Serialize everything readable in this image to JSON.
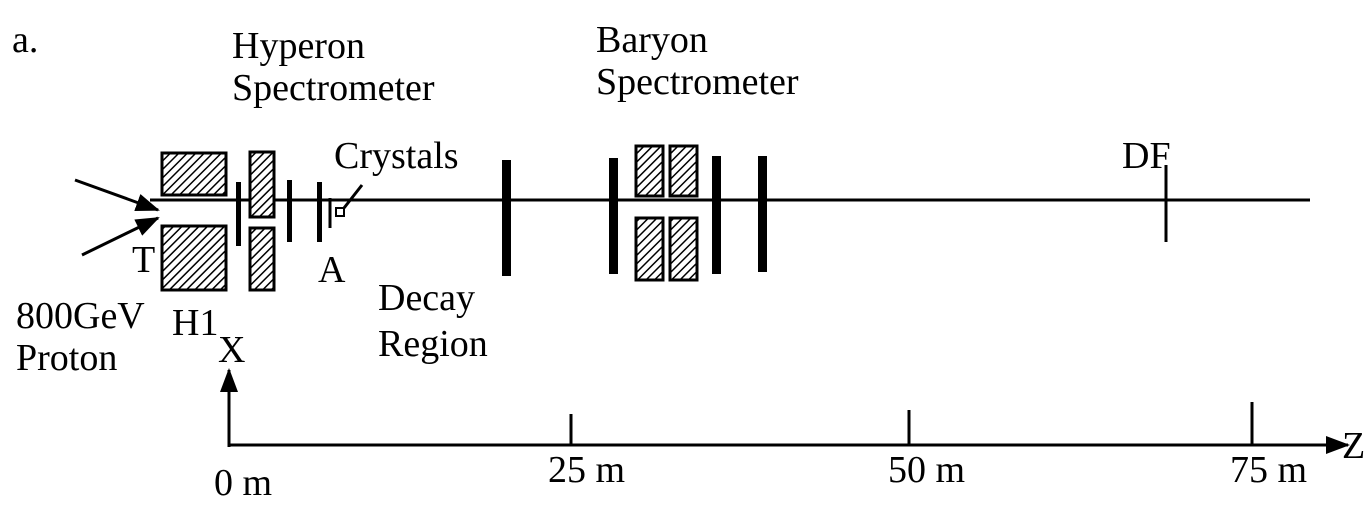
{
  "panel_label": "a.",
  "hyperon_spectrometer": {
    "line1": "Hyperon",
    "line2": "Spectrometer"
  },
  "baryon_spectrometer": {
    "line1": "Baryon",
    "line2": "Spectrometer"
  },
  "crystals": "Crystals",
  "detector": "DF",
  "target": "T",
  "aperture": "A",
  "beam": {
    "line1": "800GeV",
    "line2": "Proton"
  },
  "magnet": "H1",
  "decay_region": {
    "line1": "Decay",
    "line2": "Region"
  },
  "axis_x_label": "X",
  "axis_z_label": "Z",
  "scale_labels": [
    "0 m",
    "25 m",
    "50 m",
    "75 m"
  ]
}
